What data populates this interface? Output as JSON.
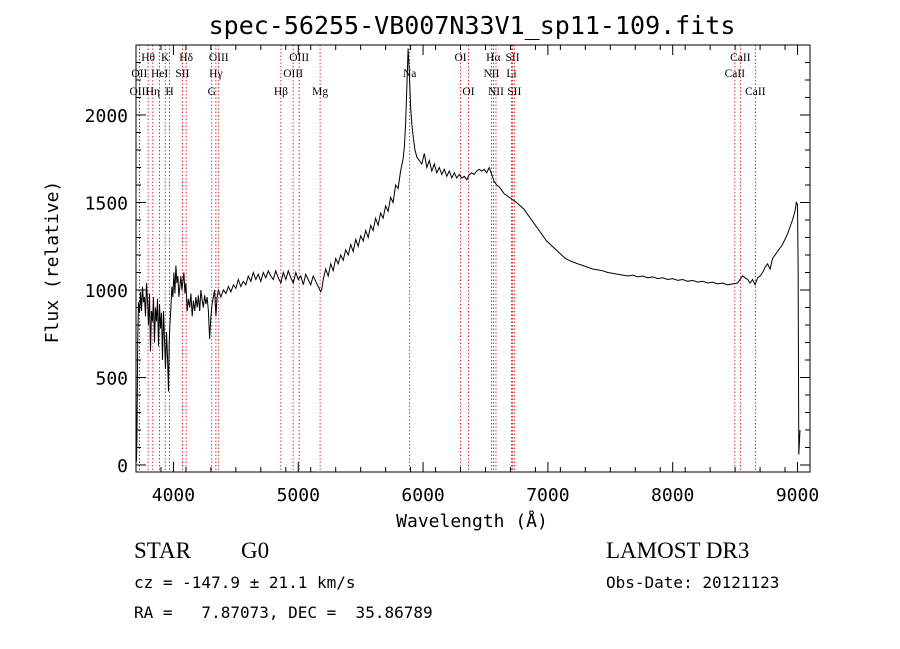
{
  "chart_data": {
    "type": "line",
    "title": "spec-56255-VB007N33V1_sp11-109.fits",
    "xlabel": "Wavelength (Å)",
    "ylabel": "Flux (relative)",
    "xlim": [
      3700,
      9100
    ],
    "ylim": [
      -40,
      2400
    ],
    "xticks": [
      4000,
      5000,
      6000,
      7000,
      8000,
      9000
    ],
    "yticks": [
      0,
      500,
      1000,
      1500,
      2000
    ],
    "grid": false,
    "series": [
      {
        "points": [
          [
            3700,
            360
          ],
          [
            3704,
            20
          ],
          [
            3708,
            180
          ],
          [
            3714,
            700
          ],
          [
            3720,
            930
          ],
          [
            3728,
            870
          ],
          [
            3736,
            990
          ],
          [
            3744,
            880
          ],
          [
            3752,
            1020
          ],
          [
            3760,
            930
          ],
          [
            3768,
            960
          ],
          [
            3776,
            850
          ],
          [
            3784,
            1040
          ],
          [
            3792,
            940
          ],
          [
            3800,
            800
          ],
          [
            3808,
            980
          ],
          [
            3816,
            650
          ],
          [
            3824,
            880
          ],
          [
            3832,
            820
          ],
          [
            3840,
            960
          ],
          [
            3848,
            700
          ],
          [
            3856,
            900
          ],
          [
            3864,
            820
          ],
          [
            3872,
            950
          ],
          [
            3880,
            680
          ],
          [
            3888,
            920
          ],
          [
            3896,
            780
          ],
          [
            3904,
            870
          ],
          [
            3912,
            600
          ],
          [
            3920,
            880
          ],
          [
            3928,
            720
          ],
          [
            3936,
            550
          ],
          [
            3944,
            760
          ],
          [
            3952,
            620
          ],
          [
            3960,
            420
          ],
          [
            3966,
            700
          ],
          [
            3972,
            800
          ],
          [
            3980,
            900
          ],
          [
            3988,
            1020
          ],
          [
            3996,
            960
          ],
          [
            4004,
            1100
          ],
          [
            4012,
            980
          ],
          [
            4020,
            1140
          ],
          [
            4028,
            1040
          ],
          [
            4036,
            1080
          ],
          [
            4044,
            960
          ],
          [
            4052,
            1020
          ],
          [
            4060,
            1080
          ],
          [
            4068,
            1000
          ],
          [
            4076,
            1050
          ],
          [
            4084,
            1100
          ],
          [
            4092,
            980
          ],
          [
            4100,
            1040
          ],
          [
            4110,
            880
          ],
          [
            4120,
            950
          ],
          [
            4130,
            900
          ],
          [
            4140,
            980
          ],
          [
            4150,
            850
          ],
          [
            4160,
            940
          ],
          [
            4170,
            880
          ],
          [
            4180,
            960
          ],
          [
            4190,
            900
          ],
          [
            4200,
            970
          ],
          [
            4210,
            880
          ],
          [
            4220,
            1000
          ],
          [
            4230,
            940
          ],
          [
            4240,
            900
          ],
          [
            4250,
            970
          ],
          [
            4260,
            920
          ],
          [
            4270,
            960
          ],
          [
            4280,
            880
          ],
          [
            4290,
            720
          ],
          [
            4300,
            850
          ],
          [
            4310,
            920
          ],
          [
            4320,
            960
          ],
          [
            4330,
            1000
          ],
          [
            4340,
            850
          ],
          [
            4350,
            960
          ],
          [
            4360,
            1000
          ],
          [
            4380,
            960
          ],
          [
            4400,
            1000
          ],
          [
            4420,
            980
          ],
          [
            4440,
            1020
          ],
          [
            4460,
            990
          ],
          [
            4480,
            1030
          ],
          [
            4500,
            1010
          ],
          [
            4520,
            1060
          ],
          [
            4540,
            1020
          ],
          [
            4560,
            1050
          ],
          [
            4580,
            1030
          ],
          [
            4600,
            1080
          ],
          [
            4620,
            1050
          ],
          [
            4640,
            1100
          ],
          [
            4660,
            1060
          ],
          [
            4680,
            1090
          ],
          [
            4700,
            1050
          ],
          [
            4720,
            1100
          ],
          [
            4740,
            1070
          ],
          [
            4760,
            1110
          ],
          [
            4780,
            1080
          ],
          [
            4800,
            1060
          ],
          [
            4820,
            1110
          ],
          [
            4840,
            1070
          ],
          [
            4860,
            1040
          ],
          [
            4880,
            1100
          ],
          [
            4900,
            1060
          ],
          [
            4920,
            1110
          ],
          [
            4940,
            1070
          ],
          [
            4960,
            1040
          ],
          [
            4980,
            1100
          ],
          [
            5000,
            1060
          ],
          [
            5020,
            1080
          ],
          [
            5040,
            1030
          ],
          [
            5060,
            1090
          ],
          [
            5080,
            1060
          ],
          [
            5100,
            1030
          ],
          [
            5120,
            1080
          ],
          [
            5140,
            1050
          ],
          [
            5160,
            1020
          ],
          [
            5180,
            990
          ],
          [
            5190,
            1010
          ],
          [
            5200,
            1060
          ],
          [
            5220,
            1120
          ],
          [
            5240,
            1080
          ],
          [
            5260,
            1150
          ],
          [
            5280,
            1110
          ],
          [
            5300,
            1180
          ],
          [
            5320,
            1150
          ],
          [
            5340,
            1200
          ],
          [
            5360,
            1170
          ],
          [
            5380,
            1230
          ],
          [
            5400,
            1200
          ],
          [
            5420,
            1260
          ],
          [
            5440,
            1220
          ],
          [
            5460,
            1290
          ],
          [
            5480,
            1250
          ],
          [
            5500,
            1310
          ],
          [
            5520,
            1280
          ],
          [
            5540,
            1340
          ],
          [
            5560,
            1300
          ],
          [
            5580,
            1370
          ],
          [
            5600,
            1340
          ],
          [
            5620,
            1410
          ],
          [
            5640,
            1370
          ],
          [
            5660,
            1440
          ],
          [
            5680,
            1410
          ],
          [
            5700,
            1480
          ],
          [
            5720,
            1450
          ],
          [
            5740,
            1530
          ],
          [
            5760,
            1500
          ],
          [
            5780,
            1600
          ],
          [
            5800,
            1580
          ],
          [
            5820,
            1680
          ],
          [
            5840,
            1750
          ],
          [
            5850,
            1820
          ],
          [
            5860,
            1950
          ],
          [
            5870,
            2150
          ],
          [
            5880,
            2380
          ],
          [
            5890,
            2250
          ],
          [
            5900,
            2050
          ],
          [
            5910,
            1950
          ],
          [
            5920,
            1880
          ],
          [
            5935,
            1800
          ],
          [
            5950,
            1760
          ],
          [
            5970,
            1740
          ],
          [
            5990,
            1720
          ],
          [
            6010,
            1780
          ],
          [
            6030,
            1700
          ],
          [
            6050,
            1740
          ],
          [
            6070,
            1680
          ],
          [
            6090,
            1720
          ],
          [
            6110,
            1670
          ],
          [
            6130,
            1700
          ],
          [
            6150,
            1660
          ],
          [
            6170,
            1690
          ],
          [
            6190,
            1650
          ],
          [
            6210,
            1680
          ],
          [
            6230,
            1640
          ],
          [
            6250,
            1670
          ],
          [
            6270,
            1640
          ],
          [
            6290,
            1660
          ],
          [
            6310,
            1640
          ],
          [
            6330,
            1650
          ],
          [
            6350,
            1630
          ],
          [
            6370,
            1660
          ],
          [
            6390,
            1670
          ],
          [
            6410,
            1660
          ],
          [
            6430,
            1680
          ],
          [
            6450,
            1690
          ],
          [
            6470,
            1680
          ],
          [
            6490,
            1690
          ],
          [
            6510,
            1670
          ],
          [
            6530,
            1700
          ],
          [
            6550,
            1660
          ],
          [
            6570,
            1620
          ],
          [
            6590,
            1600
          ],
          [
            6610,
            1590
          ],
          [
            6630,
            1570
          ],
          [
            6650,
            1550
          ],
          [
            6670,
            1540
          ],
          [
            6690,
            1530
          ],
          [
            6710,
            1520
          ],
          [
            6730,
            1510
          ],
          [
            6750,
            1500
          ],
          [
            6780,
            1480
          ],
          [
            6810,
            1460
          ],
          [
            6840,
            1430
          ],
          [
            6870,
            1400
          ],
          [
            6900,
            1370
          ],
          [
            6930,
            1340
          ],
          [
            6960,
            1310
          ],
          [
            6990,
            1280
          ],
          [
            7020,
            1260
          ],
          [
            7050,
            1240
          ],
          [
            7080,
            1220
          ],
          [
            7110,
            1200
          ],
          [
            7140,
            1180
          ],
          [
            7170,
            1170
          ],
          [
            7200,
            1160
          ],
          [
            7240,
            1150
          ],
          [
            7280,
            1140
          ],
          [
            7320,
            1130
          ],
          [
            7360,
            1120
          ],
          [
            7400,
            1115
          ],
          [
            7440,
            1110
          ],
          [
            7480,
            1100
          ],
          [
            7520,
            1095
          ],
          [
            7560,
            1090
          ],
          [
            7600,
            1085
          ],
          [
            7640,
            1080
          ],
          [
            7680,
            1085
          ],
          [
            7720,
            1075
          ],
          [
            7760,
            1080
          ],
          [
            7800,
            1070
          ],
          [
            7840,
            1075
          ],
          [
            7880,
            1065
          ],
          [
            7920,
            1070
          ],
          [
            7960,
            1060
          ],
          [
            8000,
            1065
          ],
          [
            8040,
            1055
          ],
          [
            8080,
            1060
          ],
          [
            8120,
            1050
          ],
          [
            8160,
            1055
          ],
          [
            8200,
            1045
          ],
          [
            8240,
            1050
          ],
          [
            8280,
            1040
          ],
          [
            8320,
            1045
          ],
          [
            8360,
            1035
          ],
          [
            8400,
            1040
          ],
          [
            8440,
            1030
          ],
          [
            8480,
            1035
          ],
          [
            8520,
            1040
          ],
          [
            8560,
            1080
          ],
          [
            8600,
            1060
          ],
          [
            8620,
            1040
          ],
          [
            8640,
            1060
          ],
          [
            8660,
            1030
          ],
          [
            8680,
            1070
          ],
          [
            8700,
            1080
          ],
          [
            8720,
            1100
          ],
          [
            8740,
            1130
          ],
          [
            8760,
            1150
          ],
          [
            8780,
            1120
          ],
          [
            8800,
            1180
          ],
          [
            8820,
            1200
          ],
          [
            8840,
            1220
          ],
          [
            8860,
            1240
          ],
          [
            8880,
            1260
          ],
          [
            8900,
            1290
          ],
          [
            8920,
            1320
          ],
          [
            8940,
            1360
          ],
          [
            8960,
            1400
          ],
          [
            8980,
            1450
          ],
          [
            8990,
            1500
          ],
          [
            9000,
            1490
          ],
          [
            9005,
            1150
          ],
          [
            9010,
            60
          ],
          [
            9020,
            200
          ]
        ]
      }
    ],
    "lines": [
      {
        "label": "Hθ",
        "x": 3797,
        "row": 1
      },
      {
        "label": "OII",
        "x": 3727,
        "row": 2
      },
      {
        "label": "OIII",
        "x": 3727,
        "row": 3
      },
      {
        "label": "Hη",
        "x": 3835,
        "row": 3
      },
      {
        "label": "K",
        "x": 3934,
        "row": 1
      },
      {
        "label": "HeI",
        "x": 3889,
        "row": 2
      },
      {
        "label": "H",
        "x": 3969,
        "row": 3
      },
      {
        "label": "Hδ",
        "x": 4102,
        "row": 1
      },
      {
        "label": "SII",
        "x": 4072,
        "row": 2
      },
      {
        "label": "OIII",
        "x": 4363,
        "row": 1
      },
      {
        "label": "Hγ",
        "x": 4340,
        "row": 2
      },
      {
        "label": "G",
        "x": 4307,
        "row": 3
      },
      {
        "label": "Hβ",
        "x": 4861,
        "row": 3
      },
      {
        "label": "OIII",
        "x": 5007,
        "row": 1
      },
      {
        "label": "OIII",
        "x": 4959,
        "row": 2
      },
      {
        "label": "Mg",
        "x": 5175,
        "row": 3
      },
      {
        "label": "Na",
        "x": 5893,
        "row": 2
      },
      {
        "label": "OI",
        "x": 6300,
        "row": 1
      },
      {
        "label": "OI",
        "x": 6364,
        "row": 3
      },
      {
        "label": "Hα",
        "x": 6563,
        "row": 1
      },
      {
        "label": "NII",
        "x": 6548,
        "row": 2
      },
      {
        "label": "NII",
        "x": 6584,
        "row": 3
      },
      {
        "label": "SII",
        "x": 6717,
        "row": 1
      },
      {
        "label": "Li",
        "x": 6708,
        "row": 2
      },
      {
        "label": "SII",
        "x": 6731,
        "row": 3
      },
      {
        "label": "CaII",
        "x": 8542,
        "row": 1
      },
      {
        "label": "CaII",
        "x": 8498,
        "row": 2
      },
      {
        "label": "CaII",
        "x": 8662,
        "row": 3
      }
    ]
  },
  "info": {
    "class_label": "STAR",
    "subclass": "G0",
    "survey": "LAMOST DR3",
    "cz": "cz = -147.9 ± 21.1 km/s",
    "obs_date": "Obs-Date: 20121123",
    "coords": "RA =   7.87073, DEC =  35.86789"
  }
}
